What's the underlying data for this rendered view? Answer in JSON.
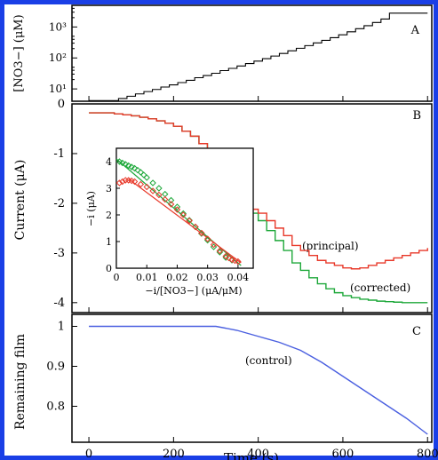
{
  "colors": {
    "border": "#1a3fe6",
    "principal": "#e8392a",
    "corrected": "#1ea83a",
    "control": "#4a5fe0",
    "staircase": "#000000"
  },
  "chart_data": [
    {
      "panel": "A",
      "type": "line",
      "ylabel": "[NO3−] (μM)",
      "yscale": "log",
      "ylim": [
        4,
        5000
      ],
      "xlim": [
        -40,
        810
      ],
      "yticks": [
        {
          "v": 10,
          "label": "10¹"
        },
        {
          "v": 100,
          "label": "10²"
        },
        {
          "v": 1000,
          "label": "10³"
        }
      ],
      "series": [
        {
          "type": "step",
          "x": [
            0,
            70,
            90,
            110,
            130,
            150,
            170,
            190,
            210,
            230,
            250,
            270,
            290,
            310,
            330,
            350,
            370,
            390,
            410,
            430,
            450,
            470,
            490,
            510,
            530,
            550,
            570,
            590,
            610,
            630,
            650,
            670,
            690,
            710,
            800
          ],
          "values": [
            4.2,
            4.9,
            5.8,
            6.9,
            8.2,
            9.6,
            11.5,
            13.5,
            16,
            19,
            23,
            27,
            32,
            39,
            46,
            55,
            66,
            79,
            95,
            115,
            140,
            170,
            205,
            250,
            305,
            370,
            450,
            560,
            700,
            880,
            1100,
            1400,
            1800,
            2800,
            2800
          ]
        }
      ],
      "panel_label": "A"
    },
    {
      "panel": "B",
      "type": "line",
      "ylabel": "Current (μA)",
      "ylim": [
        -4.2,
        0
      ],
      "xlim": [
        -40,
        810
      ],
      "yticks": [
        0,
        -1,
        -2,
        -3,
        -4
      ],
      "series": [
        {
          "name": "(principal)",
          "x": [
            0,
            60,
            80,
            100,
            120,
            140,
            160,
            180,
            200,
            220,
            240,
            260,
            280,
            300,
            320,
            340,
            360,
            380,
            400,
            420,
            440,
            460,
            480,
            500,
            520,
            540,
            560,
            580,
            600,
            620,
            640,
            660,
            680,
            700,
            720,
            740,
            760,
            780,
            800
          ],
          "values": [
            -0.18,
            -0.2,
            -0.22,
            -0.24,
            -0.27,
            -0.3,
            -0.34,
            -0.39,
            -0.45,
            -0.55,
            -0.65,
            -0.8,
            -1.0,
            -1.25,
            -1.5,
            -1.78,
            -1.95,
            -2.12,
            -2.2,
            -2.35,
            -2.5,
            -2.65,
            -2.85,
            -2.95,
            -3.05,
            -3.15,
            -3.2,
            -3.25,
            -3.3,
            -3.32,
            -3.3,
            -3.25,
            -3.2,
            -3.15,
            -3.1,
            -3.05,
            -3.0,
            -2.95,
            -2.9
          ]
        },
        {
          "name": "(corrected)",
          "x": [
            0,
            60,
            80,
            100,
            120,
            140,
            160,
            180,
            200,
            220,
            240,
            260,
            280,
            300,
            320,
            340,
            360,
            380,
            400,
            420,
            440,
            460,
            480,
            500,
            520,
            540,
            560,
            580,
            600,
            620,
            640,
            660,
            680,
            700,
            720,
            740,
            760,
            780,
            800
          ],
          "values": [
            -0.18,
            -0.2,
            -0.22,
            -0.24,
            -0.27,
            -0.3,
            -0.34,
            -0.39,
            -0.45,
            -0.55,
            -0.65,
            -0.8,
            -1.0,
            -1.25,
            -1.5,
            -1.8,
            -2.0,
            -2.2,
            -2.35,
            -2.55,
            -2.75,
            -2.95,
            -3.2,
            -3.35,
            -3.5,
            -3.62,
            -3.72,
            -3.8,
            -3.86,
            -3.9,
            -3.93,
            -3.95,
            -3.97,
            -3.98,
            -3.99,
            -4.0,
            -4.0,
            -4.0,
            -4.0
          ]
        }
      ],
      "annotations": [
        "(principal)",
        "(corrected)"
      ],
      "panel_label": "B",
      "inset": {
        "type": "scatter",
        "xlabel": "−i/[NO3−] (μA/μM)",
        "ylabel": "−i (μA)",
        "xlim": [
          0,
          0.045
        ],
        "ylim": [
          0,
          4.5
        ],
        "xticks": [
          "0",
          "0.01",
          "0.02",
          "0.03",
          "0.04"
        ],
        "yticks": [
          "0",
          "1",
          "2",
          "3",
          "4"
        ],
        "series": [
          {
            "marker": "diamond",
            "x": [
              0.001,
              0.002,
              0.003,
              0.004,
              0.005,
              0.006,
              0.007,
              0.008,
              0.009,
              0.01,
              0.012,
              0.014,
              0.016,
              0.018,
              0.02,
              0.022,
              0.024,
              0.026,
              0.028,
              0.03,
              0.032,
              0.034,
              0.036,
              0.038
            ],
            "values": [
              4.0,
              3.95,
              3.9,
              3.85,
              3.8,
              3.75,
              3.68,
              3.6,
              3.5,
              3.4,
              3.2,
              3.0,
              2.78,
              2.55,
              2.3,
              2.05,
              1.8,
              1.55,
              1.3,
              1.05,
              0.8,
              0.6,
              0.4,
              0.3
            ]
          },
          {
            "marker": "diamond",
            "x": [
              0.001,
              0.002,
              0.003,
              0.004,
              0.005,
              0.006,
              0.008,
              0.01,
              0.012,
              0.014,
              0.016,
              0.018,
              0.02,
              0.022,
              0.024,
              0.026,
              0.028,
              0.03,
              0.032,
              0.034,
              0.036,
              0.037,
              0.038,
              0.039,
              0.04
            ],
            "values": [
              3.2,
              3.25,
              3.3,
              3.3,
              3.28,
              3.25,
              3.15,
              3.05,
              2.9,
              2.75,
              2.58,
              2.4,
              2.2,
              2.0,
              1.78,
              1.55,
              1.32,
              1.1,
              0.88,
              0.65,
              0.45,
              0.38,
              0.32,
              0.28,
              0.25
            ]
          }
        ],
        "fit_lines": [
          {
            "x": [
              0,
              0.041
            ],
            "values": [
              4.1,
              0.1
            ]
          },
          {
            "x": [
              0.004,
              0.041
            ],
            "values": [
              3.35,
              0.2
            ]
          }
        ]
      }
    },
    {
      "panel": "C",
      "type": "line",
      "ylabel": "Remaining film",
      "xlabel": "Time (s)",
      "ylim": [
        0.71,
        1.03
      ],
      "xlim": [
        -40,
        810
      ],
      "yticks": [
        "1",
        "0.9",
        "0.8"
      ],
      "xticks": [
        "0",
        "200",
        "400",
        "600",
        "800"
      ],
      "series": [
        {
          "x": [
            0,
            100,
            200,
            300,
            350,
            400,
            450,
            500,
            550,
            600,
            650,
            700,
            750,
            800
          ],
          "values": [
            1.0,
            1.0,
            1.0,
            1.0,
            0.99,
            0.975,
            0.96,
            0.94,
            0.91,
            0.875,
            0.84,
            0.805,
            0.77,
            0.73
          ]
        }
      ],
      "annotations": [
        "(control)"
      ],
      "panel_label": "C"
    }
  ]
}
